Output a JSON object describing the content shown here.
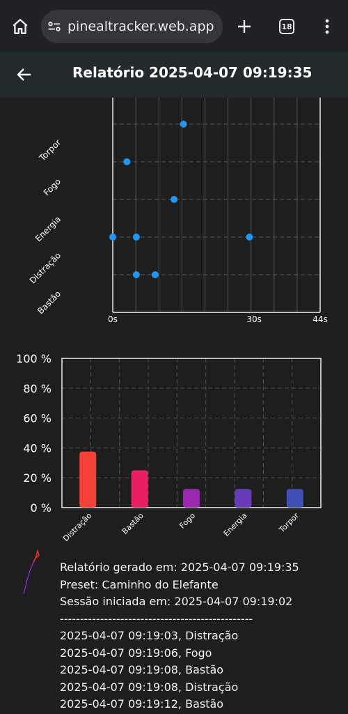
{
  "browser": {
    "url": "pinealtracker.web.app",
    "tab_count": "18",
    "icons": [
      "home-icon",
      "site-settings-icon",
      "plus-icon",
      "tabs-icon",
      "more-vert-icon"
    ]
  },
  "app": {
    "title": "Relatório 2025-04-07 09:19:35",
    "back_icon": "arrow-left-icon"
  },
  "chart_data": [
    {
      "type": "scatter",
      "categories": [
        "Torpor",
        "Fogo",
        "Energia",
        "Distração",
        "Bastão"
      ],
      "x_tick_labels": [
        "0s",
        "30s",
        "44s"
      ],
      "xlim": [
        0,
        44
      ],
      "points": [
        {
          "category": "Torpor",
          "x": 15
        },
        {
          "category": "Fogo",
          "x": 3
        },
        {
          "category": "Energia",
          "x": 13
        },
        {
          "category": "Distração",
          "x": 0
        },
        {
          "category": "Distração",
          "x": 5
        },
        {
          "category": "Distração",
          "x": 29
        },
        {
          "category": "Bastão",
          "x": 5
        },
        {
          "category": "Bastão",
          "x": 9
        }
      ],
      "grid": true,
      "point_color": "#2196f3"
    },
    {
      "type": "bar",
      "categories": [
        "Distração",
        "Bastão",
        "Fogo",
        "Energia",
        "Torpor"
      ],
      "values": [
        37.5,
        25,
        12.5,
        12.5,
        12.5
      ],
      "colors": [
        "#f44336",
        "#e91e63",
        "#9c27b0",
        "#673ab7",
        "#3f51b5"
      ],
      "y_tick_labels": [
        "0 %",
        "20 %",
        "40 %",
        "60 %",
        "80 %",
        "100 %"
      ],
      "ylim": [
        0,
        100
      ],
      "grid": true
    }
  ],
  "report": {
    "generated": "Relatório gerado em: 2025-04-07 09:19:35",
    "preset": "Preset: Caminho do Elefante",
    "session": "Sessão iniciada em: 2025-04-07 09:19:02",
    "separator": "------------------------------------------------",
    "events": [
      "2025-04-07 09:19:03, Distração",
      "2025-04-07 09:19:06, Fogo",
      "2025-04-07 09:19:08, Bastão",
      "2025-04-07 09:19:08, Distração",
      "2025-04-07 09:19:12, Bastão"
    ]
  }
}
